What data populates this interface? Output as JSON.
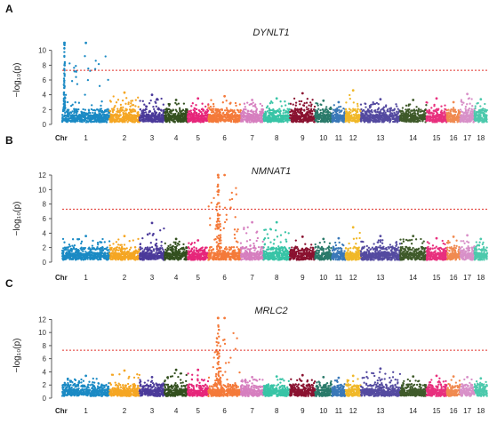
{
  "chart_data": [
    {
      "type": "scatter",
      "panel": "A",
      "title": "DYNLT1",
      "ylabel": "−log₁₀(p)",
      "ylim": [
        0,
        12
      ],
      "yticks": [
        0,
        2,
        4,
        6,
        8,
        10
      ],
      "threshold": 7.3,
      "chr_header": "Chr",
      "chromosomes": [
        "1",
        "2",
        "3",
        "4",
        "5",
        "6",
        "7",
        "8",
        "9",
        "10",
        "11",
        "12",
        "13",
        "14",
        "15",
        "16",
        "17",
        "18"
      ],
      "chr_max": [
        11.0,
        4.3,
        4.0,
        3.3,
        3.5,
        3.8,
        3.3,
        3.5,
        4.2,
        3.2,
        3.0,
        4.6,
        3.4,
        3.3,
        3.5,
        3.0,
        4.1,
        3.4
      ],
      "peaks": [
        {
          "chr": "1",
          "value": 11.0
        }
      ]
    },
    {
      "type": "scatter",
      "panel": "B",
      "title": "NMNAT1",
      "ylabel": "−log₁₀(p)",
      "ylim": [
        0,
        12
      ],
      "yticks": [
        0,
        2,
        4,
        6,
        8,
        10,
        12
      ],
      "threshold": 7.3,
      "chr_header": "Chr",
      "chromosomes": [
        "1",
        "2",
        "3",
        "4",
        "5",
        "6",
        "7",
        "8",
        "9",
        "10",
        "11",
        "12",
        "13",
        "14",
        "15",
        "16",
        "17",
        "18"
      ],
      "chr_max": [
        3.6,
        3.6,
        5.4,
        3.2,
        3.0,
        12.0,
        5.5,
        5.5,
        3.5,
        3.2,
        3.3,
        4.8,
        3.6,
        3.6,
        3.3,
        3.5,
        3.7,
        3.2
      ],
      "peaks": [
        {
          "chr": "6",
          "value": 12.0
        }
      ]
    },
    {
      "type": "scatter",
      "panel": "C",
      "title": "MRLC2",
      "ylabel": "−log₁₀(p)",
      "ylim": [
        0,
        13
      ],
      "yticks": [
        0,
        2,
        4,
        6,
        8,
        10,
        12
      ],
      "threshold": 7.3,
      "chr_header": "Chr",
      "chromosomes": [
        "1",
        "2",
        "3",
        "4",
        "5",
        "6",
        "7",
        "8",
        "9",
        "10",
        "11",
        "12",
        "13",
        "14",
        "15",
        "16",
        "17",
        "18"
      ],
      "chr_max": [
        3.4,
        4.2,
        3.2,
        4.3,
        4.3,
        12.2,
        3.2,
        3.3,
        3.5,
        3.2,
        3.1,
        3.4,
        4.5,
        3.3,
        3.4,
        3.3,
        3.2,
        3.0
      ],
      "peaks": [
        {
          "chr": "6",
          "value": 12.2
        }
      ]
    }
  ],
  "colors": {
    "chromosomes": [
      "#1b8ac4",
      "#f5a623",
      "#4b3a9a",
      "#33501f",
      "#e6267a",
      "#f47a3a",
      "#d67fbf",
      "#38c4a6",
      "#8a1230",
      "#2a7a6a",
      "#3a78b8",
      "#f0b829",
      "#544aa0",
      "#3f5a2a",
      "#e8307e",
      "#f08a50",
      "#d890c8",
      "#4cc9ac"
    ],
    "threshold": "#e0302a",
    "axis": "#333333"
  }
}
